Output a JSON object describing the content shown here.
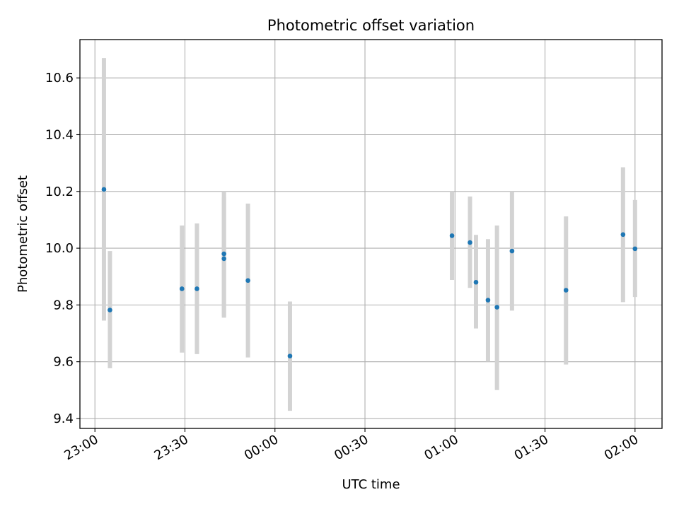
{
  "chart_data": {
    "type": "scatter",
    "title": "Photometric offset variation",
    "xlabel": "UTC time",
    "ylabel": "Photometric offset",
    "x_is_time": true,
    "xlim": [
      "22:55",
      "02:09"
    ],
    "ylim": [
      9.365,
      10.735
    ],
    "x_ticks": [
      "23:00",
      "23:30",
      "00:00",
      "00:30",
      "01:00",
      "01:30",
      "02:00"
    ],
    "y_ticks": [
      "9.4",
      "9.6",
      "9.8",
      "10.0",
      "10.2",
      "10.4",
      "10.6"
    ],
    "grid": true,
    "colors": {
      "point": "#1f77b4",
      "errorbar": "#d3d3d3",
      "grid": "#b0b0b0"
    },
    "points": [
      {
        "time": "23:03",
        "value": 10.207,
        "low": 9.745,
        "high": 10.67
      },
      {
        "time": "23:05",
        "value": 9.782,
        "low": 9.577,
        "high": 9.99
      },
      {
        "time": "23:29",
        "value": 9.857,
        "low": 9.632,
        "high": 10.08
      },
      {
        "time": "23:34",
        "value": 9.857,
        "low": 9.627,
        "high": 10.087
      },
      {
        "time": "23:43",
        "value": 9.963,
        "low": 9.76,
        "high": 10.18
      },
      {
        "time": "23:43",
        "value": 9.98,
        "low": 9.755,
        "high": 10.2
      },
      {
        "time": "23:51",
        "value": 9.886,
        "low": 9.615,
        "high": 10.157
      },
      {
        "time": "00:05",
        "value": 9.62,
        "low": 9.427,
        "high": 9.812
      },
      {
        "time": "00:59",
        "value": 10.044,
        "low": 9.888,
        "high": 10.2
      },
      {
        "time": "01:05",
        "value": 10.02,
        "low": 9.86,
        "high": 10.182
      },
      {
        "time": "01:07",
        "value": 9.88,
        "low": 9.717,
        "high": 10.047
      },
      {
        "time": "01:11",
        "value": 9.817,
        "low": 9.6,
        "high": 10.032
      },
      {
        "time": "01:14",
        "value": 9.792,
        "low": 9.5,
        "high": 10.08
      },
      {
        "time": "01:19",
        "value": 9.99,
        "low": 9.78,
        "high": 10.2
      },
      {
        "time": "01:37",
        "value": 9.852,
        "low": 9.59,
        "high": 10.112
      },
      {
        "time": "01:56",
        "value": 10.048,
        "low": 9.81,
        "high": 10.285
      },
      {
        "time": "02:00",
        "value": 9.998,
        "low": 9.828,
        "high": 10.17
      }
    ]
  }
}
